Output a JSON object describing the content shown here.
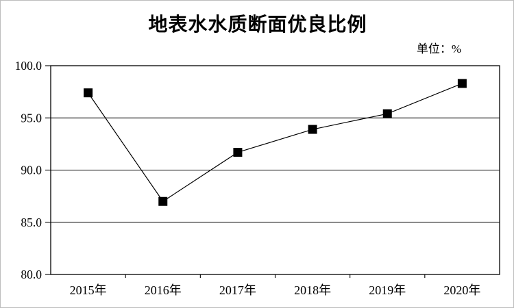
{
  "frame": {
    "background_color": "#ffffff",
    "border_color": "#bdbdbd"
  },
  "header": {
    "title": "地表水水质断面优良比例",
    "unit_label": "单位：%"
  },
  "chart_data": {
    "type": "line",
    "title": "地表水水质断面优良比例",
    "unit_label": "单位：%",
    "categories": [
      "2015年",
      "2016年",
      "2017年",
      "2018年",
      "2019年",
      "2020年"
    ],
    "series": [
      {
        "name": "地表水水质断面优良比例",
        "values": [
          97.4,
          87.0,
          91.7,
          93.9,
          95.4,
          98.3
        ]
      }
    ],
    "xlabel": "",
    "ylabel": "",
    "ylim": [
      80,
      100
    ],
    "y_ticks": [
      100,
      95,
      90,
      85,
      80
    ],
    "y_tick_labels": [
      "100.0",
      "95.0",
      "90.0",
      "85.0",
      "80.0"
    ],
    "grid": "horizontal",
    "legend": "none",
    "line_color": "#000000",
    "marker": "filled-square",
    "marker_color": "#000000",
    "axis_color": "#000000",
    "text_color": "#000000"
  }
}
